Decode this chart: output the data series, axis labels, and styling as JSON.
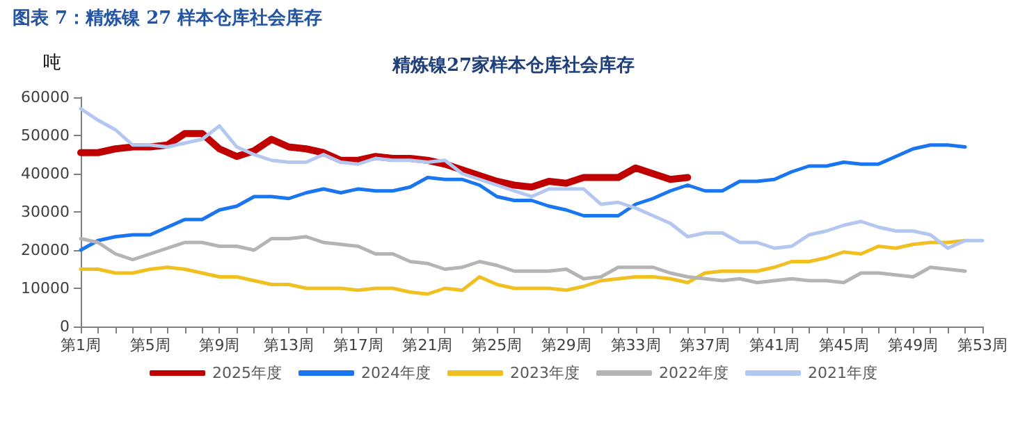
{
  "chart_data": {
    "type": "line",
    "title": "精炼镍27家样本仓库社会库存",
    "subtitle": "图表 7：精炼镍 27 样本仓库社会库存",
    "ylabel": "吨",
    "categories": [
      "第1周",
      null,
      null,
      null,
      "第5周",
      null,
      null,
      null,
      "第9周",
      null,
      null,
      null,
      "第13周",
      null,
      null,
      null,
      "第17周",
      null,
      null,
      null,
      "第21周",
      null,
      null,
      null,
      "第25周",
      null,
      null,
      null,
      "第29周",
      null,
      null,
      null,
      "第33周",
      null,
      null,
      null,
      "第37周",
      null,
      null,
      null,
      "第41周",
      null,
      null,
      null,
      "第45周",
      null,
      null,
      null,
      "第49周",
      null,
      null,
      null,
      "第53周"
    ],
    "series": [
      {
        "name": "2025年度",
        "color": "#c00000",
        "values": [
          45500,
          45500,
          46500,
          47000,
          47000,
          47500,
          50500,
          50500,
          46500,
          44500,
          46000,
          49000,
          47000,
          46500,
          45500,
          43500,
          43500,
          44500,
          44000,
          44000,
          43500,
          42500,
          41000,
          39500,
          38000,
          37000,
          36500,
          38000,
          37500,
          39000,
          39000,
          39000,
          41500,
          40000,
          38500,
          39000,
          null,
          null,
          null,
          null,
          null,
          null,
          null,
          null,
          null,
          null,
          null,
          null,
          null,
          null,
          null,
          null,
          null
        ]
      },
      {
        "name": "2024年度",
        "color": "#1a75f0",
        "values": [
          20000,
          22500,
          23500,
          24000,
          24000,
          26000,
          28000,
          28000,
          30500,
          31500,
          34000,
          34000,
          33500,
          35000,
          36000,
          35000,
          36000,
          35500,
          35500,
          36500,
          39000,
          38500,
          38500,
          37000,
          34000,
          33000,
          33000,
          31500,
          30500,
          29000,
          29000,
          29000,
          32000,
          33500,
          35500,
          37000,
          35500,
          35500,
          38000,
          38000,
          38500,
          40500,
          42000,
          42000,
          43000,
          42500,
          42500,
          44500,
          46500,
          47500,
          47500,
          47000,
          null
        ]
      },
      {
        "name": "2023年度",
        "color": "#f0c020",
        "values": [
          15000,
          15000,
          14000,
          14000,
          15000,
          15500,
          15000,
          14000,
          13000,
          13000,
          12000,
          11000,
          11000,
          10000,
          10000,
          10000,
          9500,
          10000,
          10000,
          9000,
          8500,
          10000,
          9500,
          13000,
          11000,
          10000,
          10000,
          10000,
          9500,
          10500,
          12000,
          12500,
          13000,
          13000,
          12500,
          11500,
          14000,
          14500,
          14500,
          14500,
          15500,
          17000,
          17000,
          18000,
          19500,
          19000,
          21000,
          20500,
          21500,
          22000,
          22000,
          22500,
          null
        ]
      },
      {
        "name": "2022年度",
        "color": "#b4b4b4",
        "values": [
          23000,
          22000,
          19000,
          17500,
          19000,
          20500,
          22000,
          22000,
          21000,
          21000,
          20000,
          23000,
          23000,
          23500,
          22000,
          21500,
          21000,
          19000,
          19000,
          17000,
          16500,
          15000,
          15500,
          17000,
          16000,
          14500,
          14500,
          14500,
          15000,
          12500,
          13000,
          15500,
          15500,
          15500,
          14000,
          13000,
          12500,
          12000,
          12500,
          11500,
          12000,
          12500,
          12000,
          12000,
          11500,
          14000,
          14000,
          13500,
          13000,
          15500,
          15000,
          14500,
          null
        ]
      },
      {
        "name": "2021年度",
        "color": "#b4c7f0",
        "values": [
          57000,
          54000,
          51500,
          47500,
          47500,
          47000,
          48000,
          49000,
          52500,
          47000,
          45000,
          43500,
          43000,
          43000,
          45000,
          43000,
          42500,
          44000,
          43500,
          43500,
          43000,
          43500,
          40000,
          38500,
          37000,
          35500,
          34000,
          36000,
          36000,
          36000,
          32000,
          32500,
          31000,
          29000,
          27000,
          23500,
          24500,
          24500,
          22000,
          22000,
          20500,
          21000,
          24000,
          25000,
          26500,
          27500,
          26000,
          25000,
          25000,
          24000,
          20500,
          22500,
          22500
        ]
      }
    ],
    "ylim": [
      0,
      60000
    ],
    "yticks": [
      0,
      10000,
      20000,
      30000,
      40000,
      50000,
      60000
    ],
    "grid": false,
    "legend": "bottom",
    "marker": "none",
    "line_style": "solid"
  }
}
